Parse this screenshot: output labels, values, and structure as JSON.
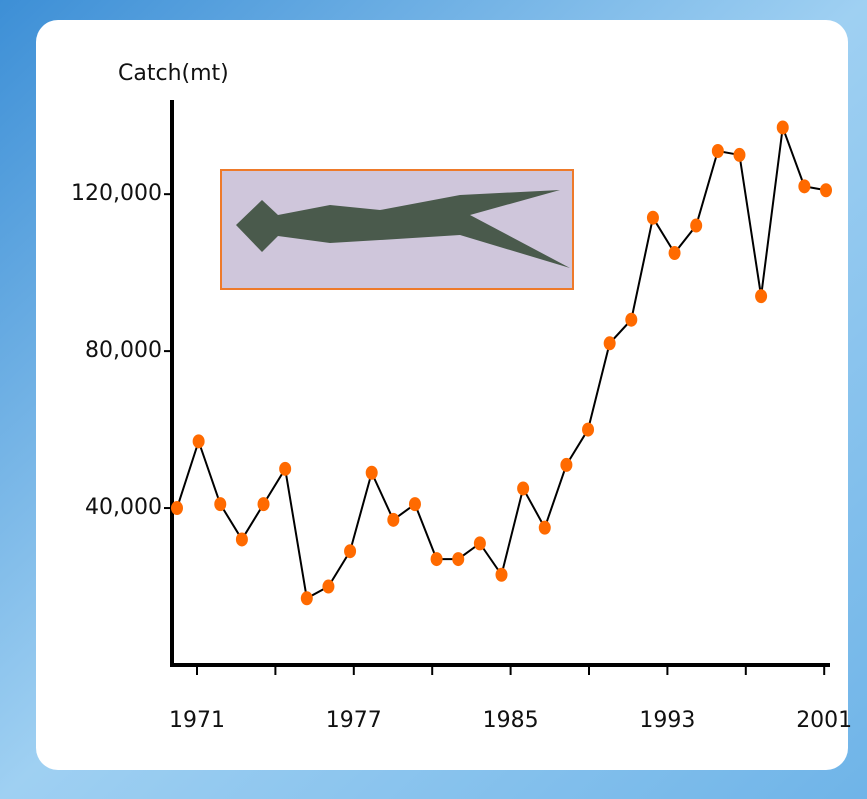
{
  "chart_data": {
    "type": "line",
    "y_label": "Catch(mt)",
    "categories": [
      null,
      null,
      null,
      null,
      null,
      null,
      null,
      null,
      null,
      null,
      null,
      null,
      null,
      null,
      null,
      null,
      null,
      null,
      null,
      null,
      null,
      null,
      null,
      null,
      null,
      null,
      null,
      null,
      null,
      null,
      null
    ],
    "values": [
      40000,
      57000,
      41000,
      32000,
      41000,
      50000,
      17000,
      20000,
      29000,
      49000,
      37000,
      41000,
      27000,
      27000,
      31000,
      23000,
      45000,
      35000,
      51000,
      60000,
      82000,
      88000,
      114000,
      105000,
      112000,
      131000,
      130000,
      94000,
      137000,
      122000,
      121000
    ],
    "color": "#ff6a00",
    "line_color": "#000000",
    "ylim": [
      0,
      144000
    ],
    "yticks": [
      {
        "value": 40000,
        "label": "40,000"
      },
      {
        "value": 80000,
        "label": "80,000"
      },
      {
        "value": 120000,
        "label": "120,000"
      }
    ],
    "xtick_labels": [
      "1971",
      "1977",
      "1985",
      "1993",
      "2001"
    ]
  }
}
